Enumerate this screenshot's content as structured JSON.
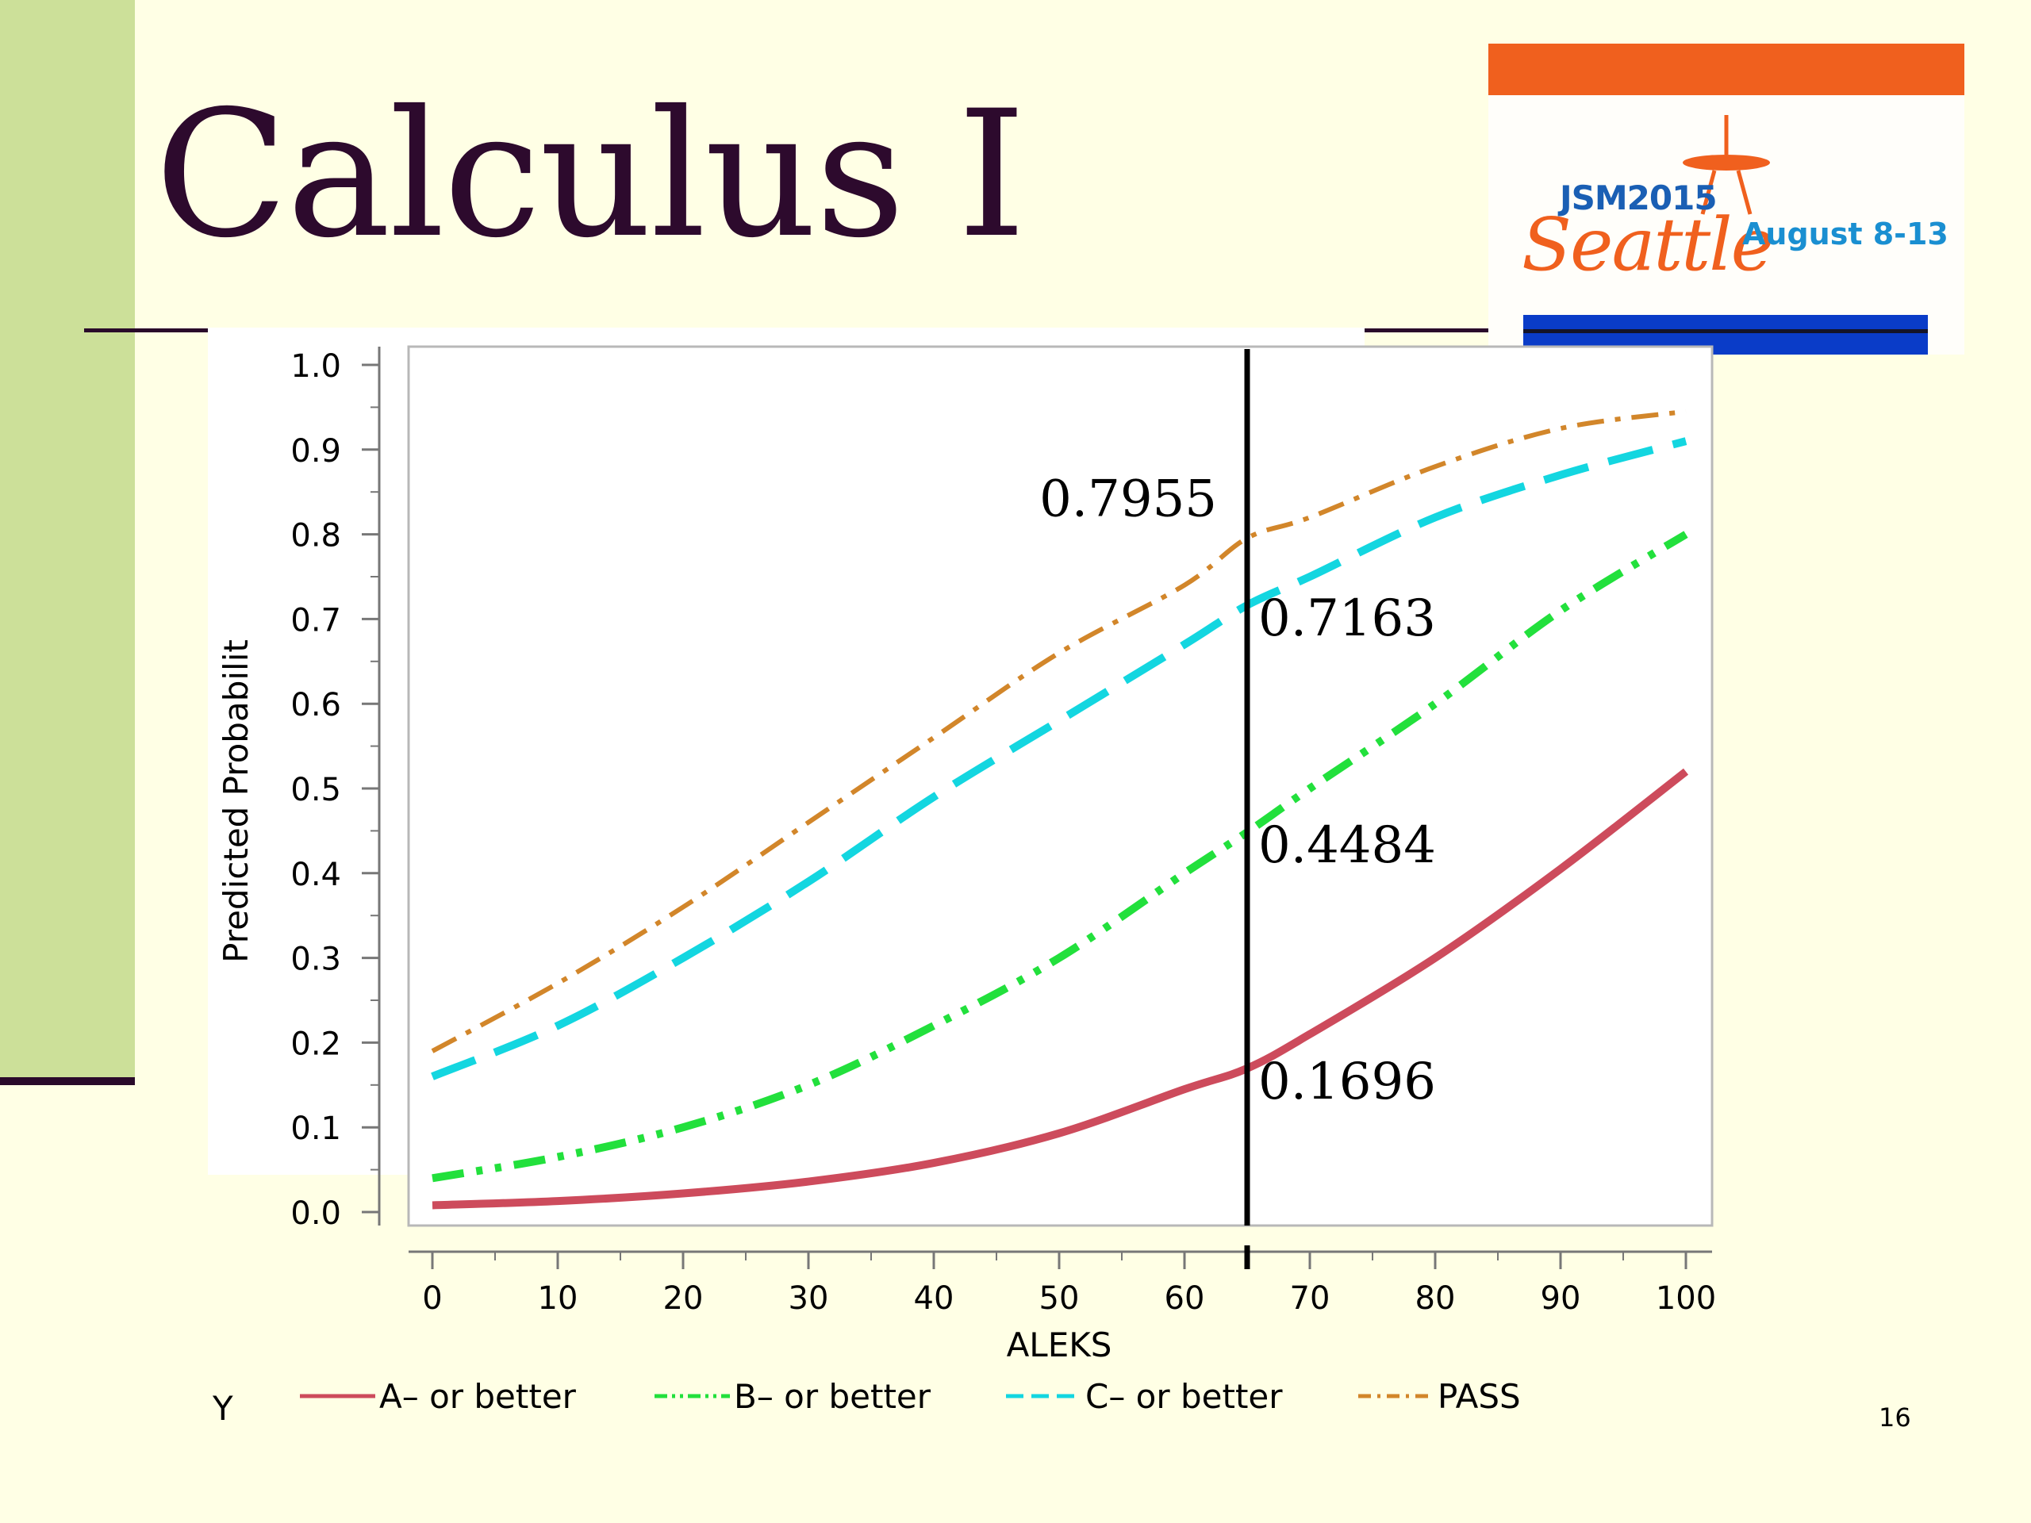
{
  "slide": {
    "title": "Calculus I",
    "number": "16"
  },
  "logo": {
    "event": "JSM2015",
    "city": "Seattle",
    "dates": "August 8-13"
  },
  "chart_data": {
    "type": "line",
    "xlabel": "ALEKS",
    "ylabel": "Predicted Probabilit",
    "xlim": [
      0,
      100
    ],
    "ylim": [
      0,
      1
    ],
    "xticks": [
      "0",
      "10",
      "20",
      "30",
      "40",
      "50",
      "60",
      "70",
      "80",
      "90",
      "100"
    ],
    "yticks": [
      "0.0",
      "0.1",
      "0.2",
      "0.3",
      "0.4",
      "0.5",
      "0.6",
      "0.7",
      "0.8",
      "0.9",
      "1.0"
    ],
    "grid": false,
    "legend_title": "Y",
    "legend_position": "bottom",
    "reference_line_x": 65,
    "x": [
      0,
      10,
      20,
      30,
      40,
      50,
      60,
      65,
      70,
      80,
      90,
      100
    ],
    "series": [
      {
        "name": "A– or better",
        "color": "#cd4b5c",
        "dash": "solid",
        "values": [
          0.008,
          0.013,
          0.022,
          0.036,
          0.058,
          0.093,
          0.145,
          0.1696,
          0.21,
          0.3,
          0.405,
          0.52
        ]
      },
      {
        "name": "B– or better",
        "color": "#22e03c",
        "dash": "dash-dot-dot",
        "values": [
          0.04,
          0.065,
          0.1,
          0.15,
          0.22,
          0.3,
          0.4,
          0.4484,
          0.5,
          0.6,
          0.71,
          0.8
        ]
      },
      {
        "name": "C– or better",
        "color": "#13d6e0",
        "dash": "dash",
        "values": [
          0.16,
          0.22,
          0.3,
          0.39,
          0.49,
          0.58,
          0.67,
          0.7163,
          0.75,
          0.82,
          0.87,
          0.91
        ]
      },
      {
        "name": "PASS",
        "color": "#d2862a",
        "dash": "dash-dot",
        "values": [
          0.19,
          0.27,
          0.36,
          0.46,
          0.56,
          0.66,
          0.74,
          0.7955,
          0.82,
          0.88,
          0.925,
          0.945
        ]
      }
    ],
    "annotations": [
      {
        "text": "0.7955",
        "x": 65,
        "y": 0.7955,
        "side": "left"
      },
      {
        "text": "0.7163",
        "x": 65,
        "y": 0.7163,
        "side": "right"
      },
      {
        "text": "0.4484",
        "x": 65,
        "y": 0.4484,
        "side": "right"
      },
      {
        "text": "0.1696",
        "x": 65,
        "y": 0.1696,
        "side": "right"
      }
    ]
  }
}
